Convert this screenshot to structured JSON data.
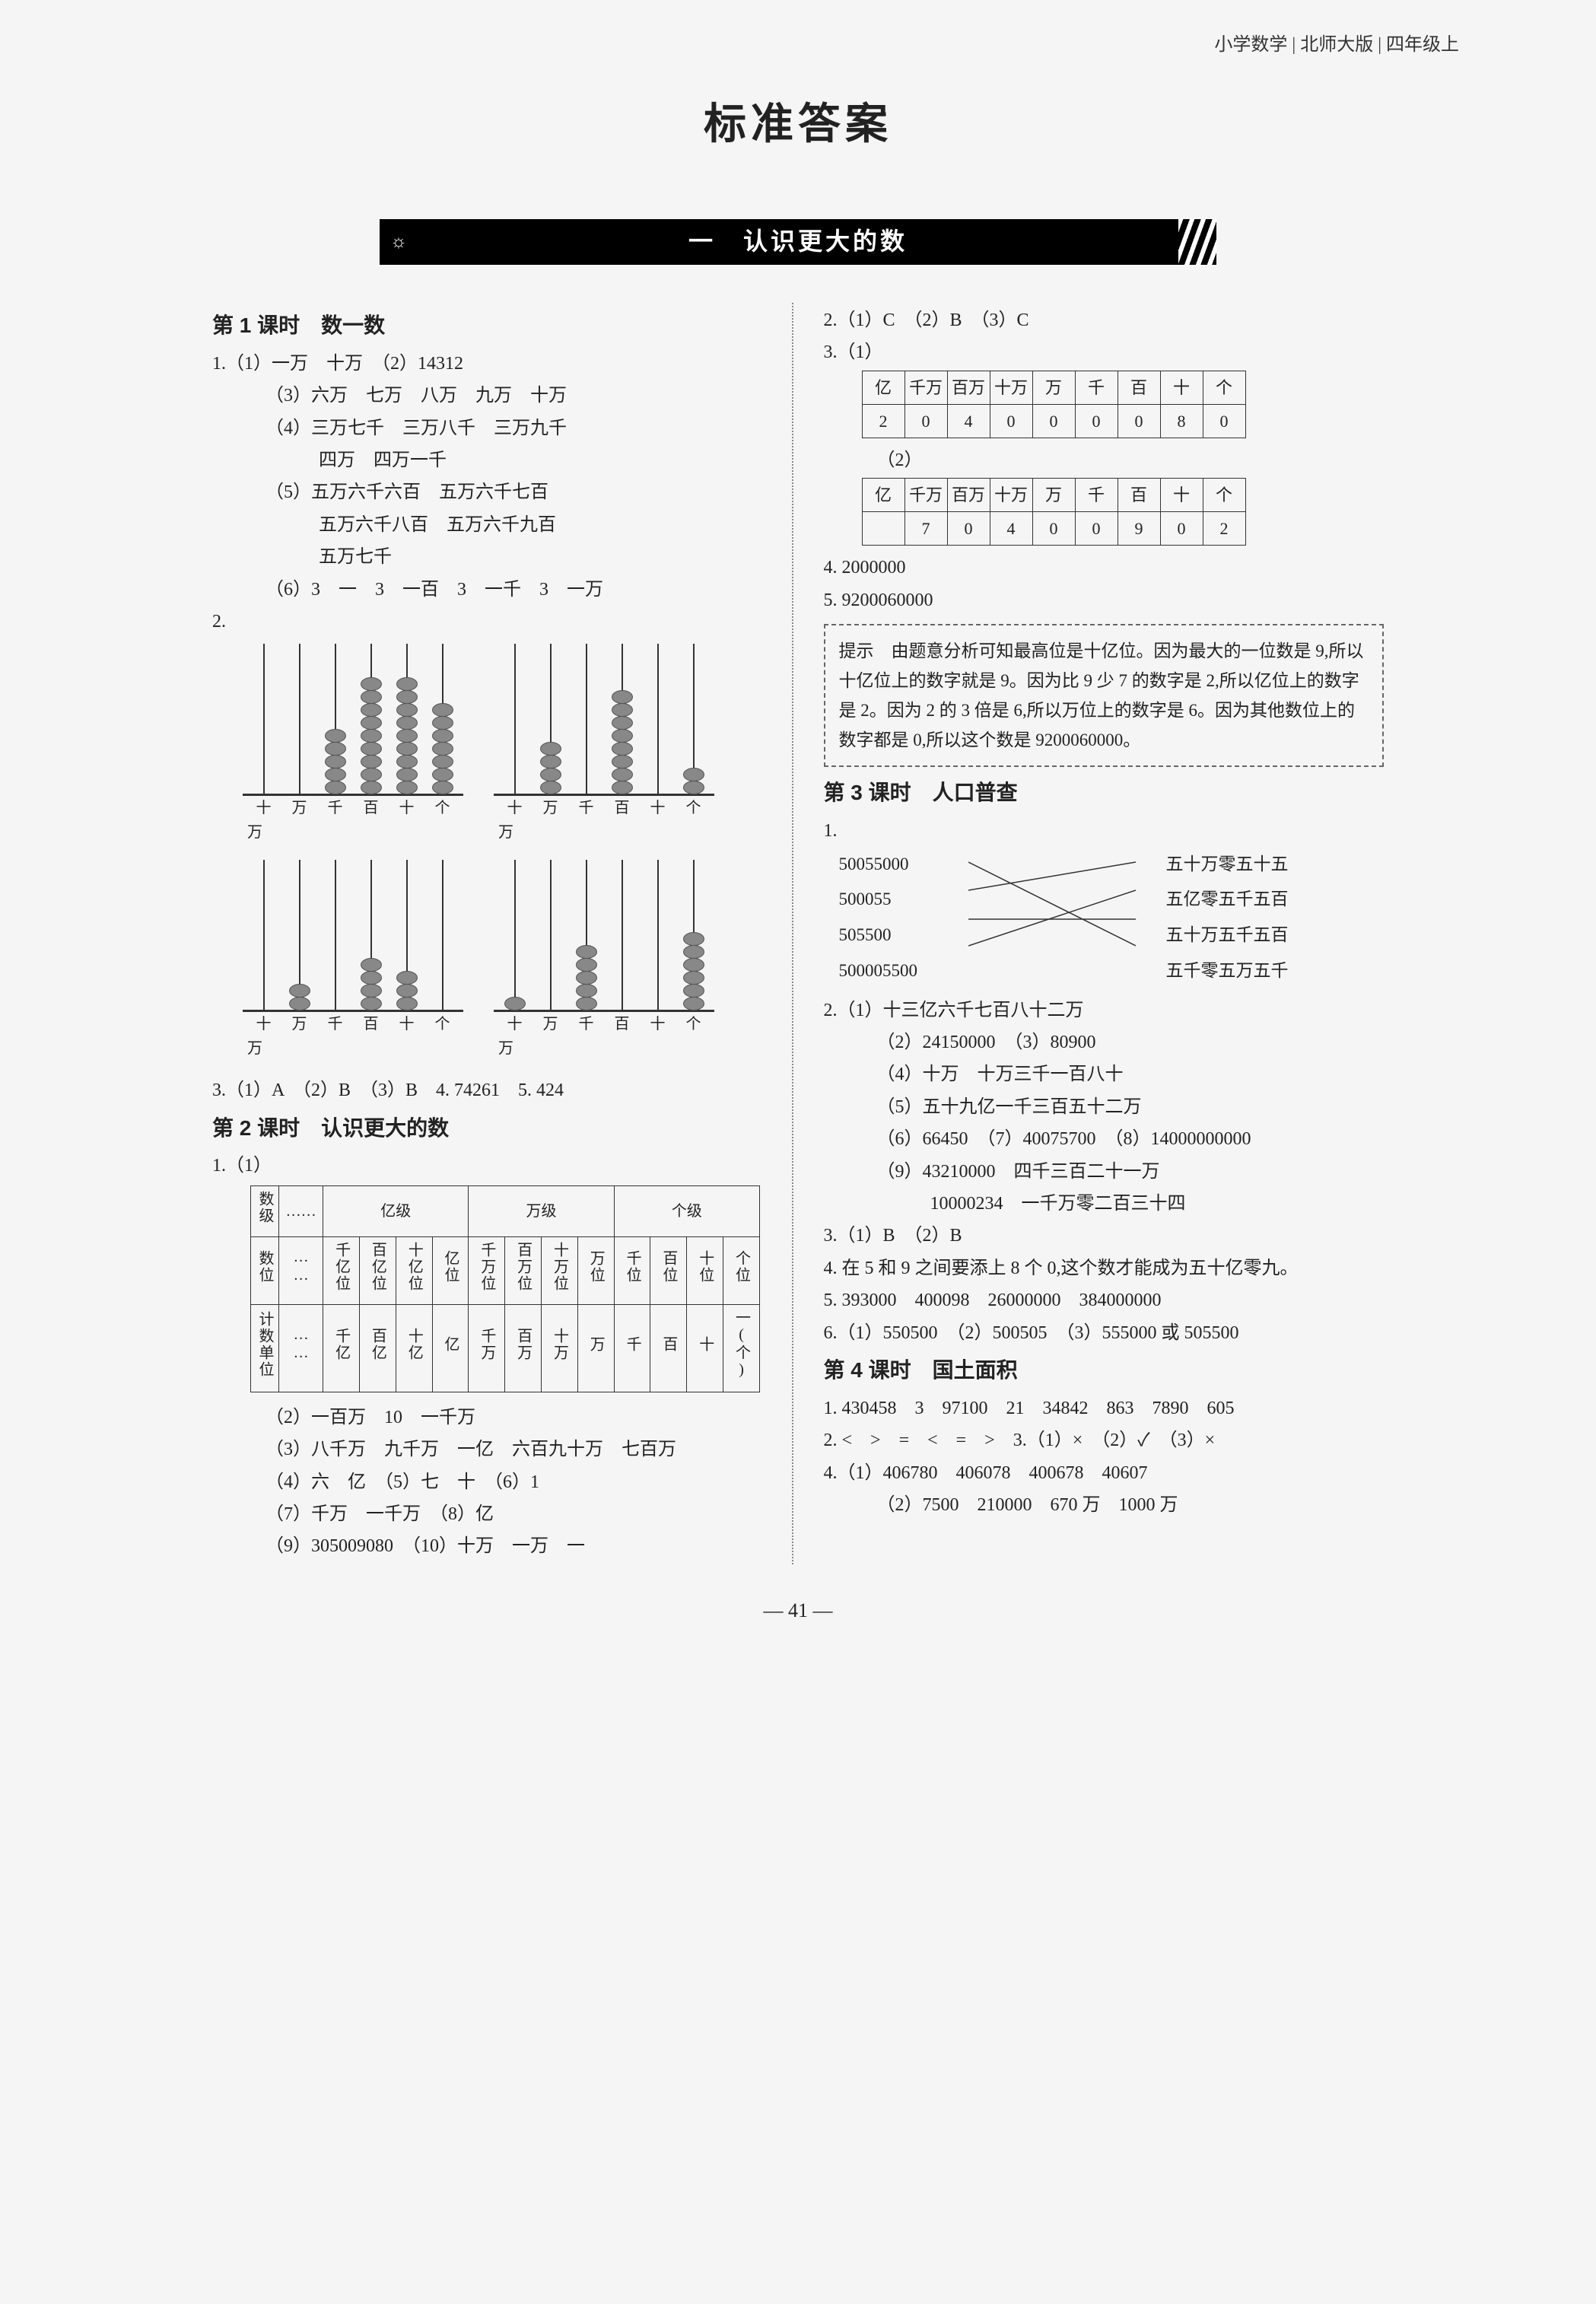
{
  "header": {
    "breadcrumb": "小学数学  |  北师大版  |  四年级上"
  },
  "title": "标准答案",
  "banner": {
    "icon": "☼",
    "text": "一　认识更大的数"
  },
  "left": {
    "lesson1_title": "第 1 课时　数一数",
    "q1_1": "1.（1）一万　十万　（2）14312",
    "q1_3": "（3）六万　七万　八万　九万　十万",
    "q1_4": "（4）三万七千　三万八千　三万九千",
    "q1_4b": "四万　四万一千",
    "q1_5": "（5）五万六千六百　五万六千七百",
    "q1_5b": "五万六千八百　五万六千九百",
    "q1_5c": "五万七千",
    "q1_6": "（6）3　一　3　一百　3　一千　3　一万",
    "q2": "2.",
    "abacus_labels": [
      "十万",
      "万",
      "千",
      "百",
      "十",
      "个"
    ],
    "abacus_sublabel": "万",
    "abacus1": [
      0,
      0,
      5,
      9,
      9,
      7
    ],
    "abacus2": [
      0,
      4,
      0,
      8,
      0,
      2
    ],
    "abacus3": [
      0,
      2,
      0,
      4,
      3,
      0
    ],
    "abacus4": [
      1,
      0,
      5,
      0,
      0,
      6
    ],
    "q3": "3.（1）A　（2）B　（3）B　4. 74261　5. 424",
    "lesson2_title": "第 2 课时　认识更大的数",
    "q2_1": "1.（1）",
    "place_table": {
      "row1_label": "数级",
      "row1": [
        "……",
        "亿级",
        "万级",
        "个级"
      ],
      "row2_label": "数位",
      "row2": [
        "……",
        "千亿位",
        "百亿位",
        "十亿位",
        "亿位",
        "千万位",
        "百万位",
        "十万位",
        "万位",
        "千位",
        "百位",
        "十位",
        "个位"
      ],
      "row3_label": "计数单位",
      "row3": [
        "……",
        "千亿",
        "百亿",
        "十亿",
        "亿",
        "千万",
        "百万",
        "十万",
        "万",
        "千",
        "百",
        "十",
        "一(个)"
      ]
    },
    "q2_2": "（2）一百万　10　一千万",
    "q2_3": "（3）八千万　九千万　一亿　六百九十万　七百万",
    "q2_4": "（4）六　亿　（5）七　十　（6）1",
    "q2_7": "（7）千万　一千万　（8）亿",
    "q2_9": "（9）305009080　（10）十万　一万　一"
  },
  "right": {
    "r2": "2.（1）C　（2）B　（3）C",
    "r3_1": "3.（1）",
    "r3_2": "（2）",
    "num_headers": [
      "亿",
      "千万",
      "百万",
      "十万",
      "万",
      "千",
      "百",
      "十",
      "个"
    ],
    "num_row1": [
      "2",
      "0",
      "4",
      "0",
      "0",
      "0",
      "0",
      "8",
      "0"
    ],
    "num_row2": [
      "",
      "7",
      "0",
      "4",
      "0",
      "0",
      "9",
      "0",
      "2"
    ],
    "r4": "4. 2000000",
    "r5": "5. 9200060000",
    "hint": "提示　由题意分析可知最高位是十亿位。因为最大的一位数是 9,所以十亿位上的数字就是 9。因为比 9 少 7 的数字是 2,所以亿位上的数字是 2。因为 2 的 3 倍是 6,所以万位上的数字是 6。因为其他数位上的数字都是 0,所以这个数是 9200060000。",
    "lesson3_title": "第 3 课时　人口普查",
    "match_prefix": "1.",
    "match_left": [
      "50055000",
      "500055",
      "505500",
      "500005500"
    ],
    "match_right": [
      "五十万零五十五",
      "五亿零五千五百",
      "五十万五千五百",
      "五千零五万五千"
    ],
    "l3_2_1": "2.（1）十三亿六千七百八十二万",
    "l3_2_2": "（2）24150000　（3）80900",
    "l3_2_4": "（4）十万　十万三千一百八十",
    "l3_2_5": "（5）五十九亿一千三百五十二万",
    "l3_2_6": "（6）66450　（7）40075700　（8）14000000000",
    "l3_2_9": "（9）43210000　四千三百二十一万",
    "l3_2_9b": "10000234　一千万零二百三十四",
    "l3_3": "3.（1）B　（2）B",
    "l3_4": "4. 在 5 和 9 之间要添上 8 个 0,这个数才能成为五十亿零九。",
    "l3_5": "5. 393000　400098　26000000　384000000",
    "l3_6": "6.（1）550500　（2）500505　（3）555000 或 505500",
    "lesson4_title": "第 4 课时　国土面积",
    "l4_1": "1. 430458　3　97100　21　34842　863　7890　605",
    "l4_2": "2. <　>　=　<　=　>　3.（1）×　（2）✓　（3）×",
    "l4_4_1": "4.（1）406780　406078　400678　40607",
    "l4_4_2": "（2）7500　210000　670 万　1000 万"
  },
  "page_number": "— 41 —"
}
